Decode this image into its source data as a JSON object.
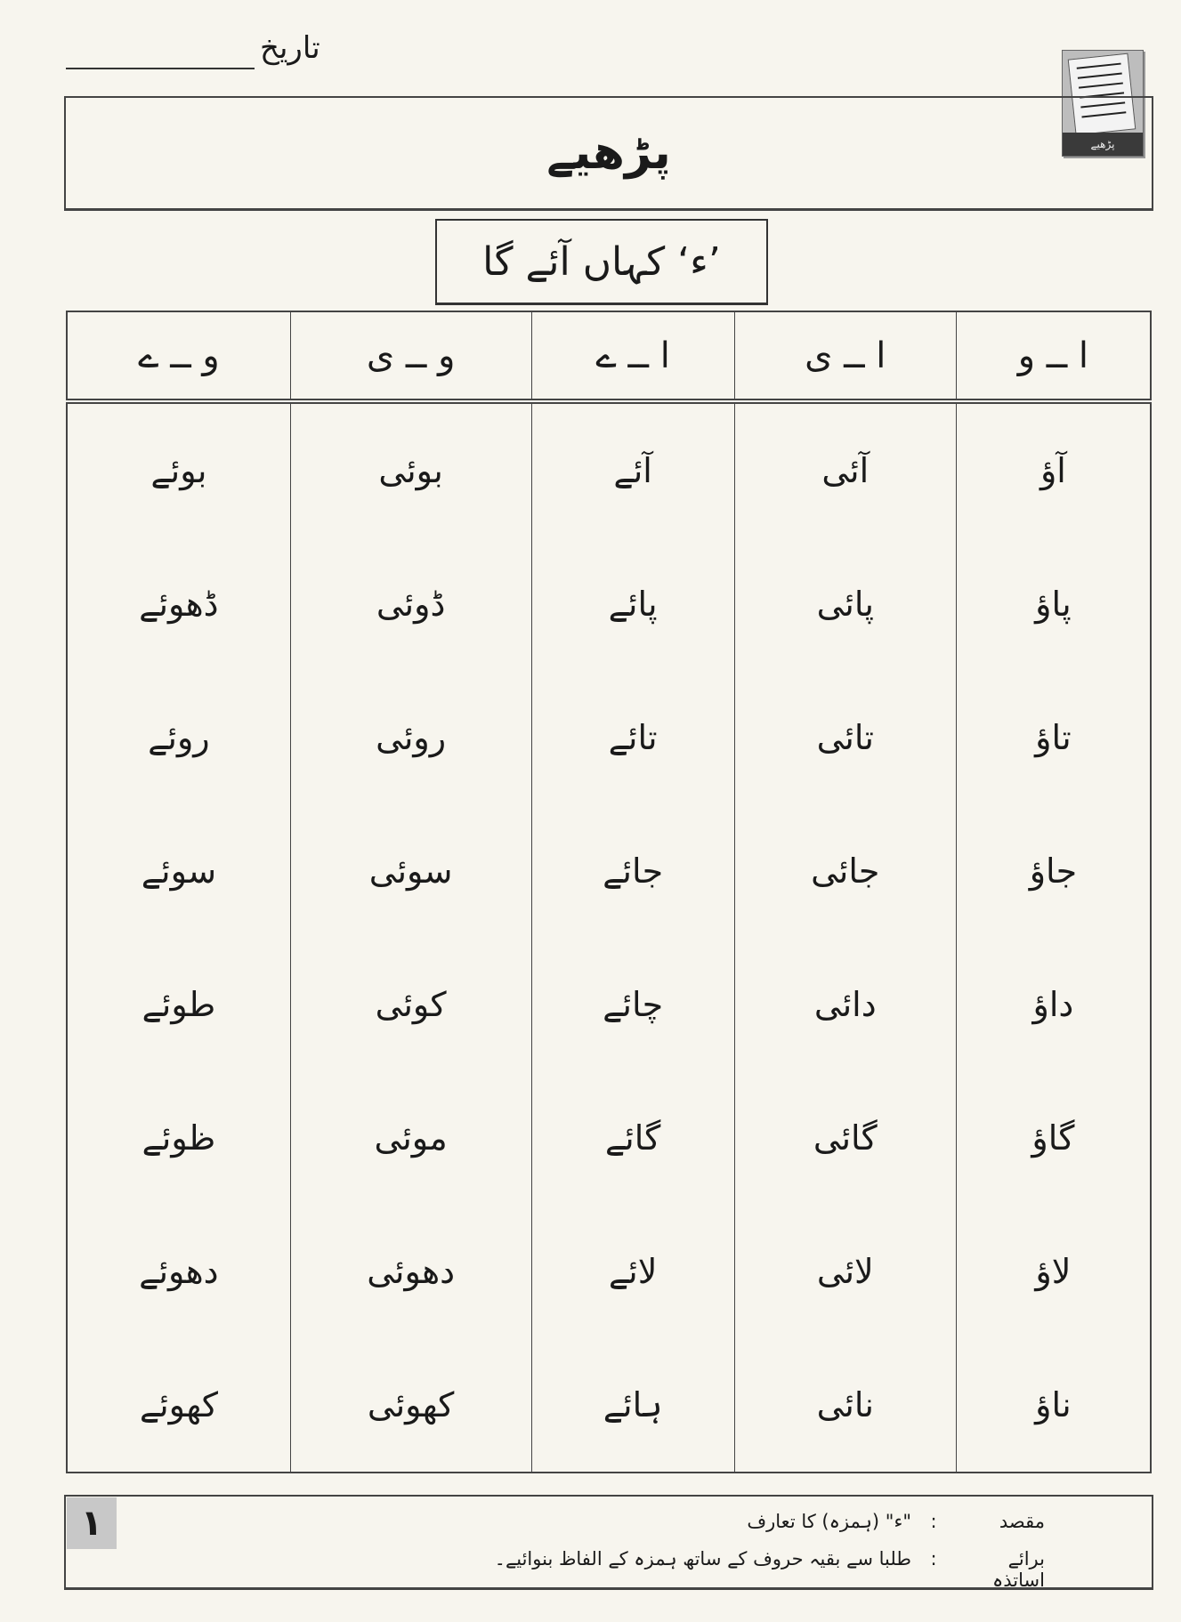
{
  "header": {
    "date_label": "تاریخ"
  },
  "icon": {
    "name": "reading-icon",
    "label": "پڑھیے"
  },
  "title": "پڑھیے",
  "subtitle": "’ء‘ کہاں آئے گا",
  "table": {
    "headers": [
      "ا ــ و",
      "ا ــ ی",
      "ا ــ ے",
      "و ــ ی",
      "و ــ ے"
    ],
    "rows": [
      [
        "آؤ",
        "آئی",
        "آئے",
        "بوئی",
        "بوئے"
      ],
      [
        "پاؤ",
        "پائی",
        "پائے",
        "ڈوئی",
        "ڈھوئے"
      ],
      [
        "تاؤ",
        "تائی",
        "تائے",
        "روئی",
        "روئے"
      ],
      [
        "جاؤ",
        "جائی",
        "جائے",
        "سوئی",
        "سوئے"
      ],
      [
        "داؤ",
        "دائی",
        "چائے",
        "کوئی",
        "طوئے"
      ],
      [
        "گاؤ",
        "گائی",
        "گائے",
        "موئی",
        "ظوئے"
      ],
      [
        "لاؤ",
        "لائی",
        "لائے",
        "دھوئی",
        "دھوئے"
      ],
      [
        "ناؤ",
        "نائی",
        "ہائے",
        "کھوئی",
        "کھوئے"
      ]
    ]
  },
  "footer": {
    "page_number": "۱",
    "purpose_label": "مقصد",
    "purpose_value": "\"ء\" (ہمزہ) کا تعارف",
    "teachers_label": "برائے اساتذہ",
    "teachers_value": "طلبا سے بقیہ حروف کے ساتھ ہمزہ کے الفاظ بنوائیے۔",
    "separator": ":"
  }
}
